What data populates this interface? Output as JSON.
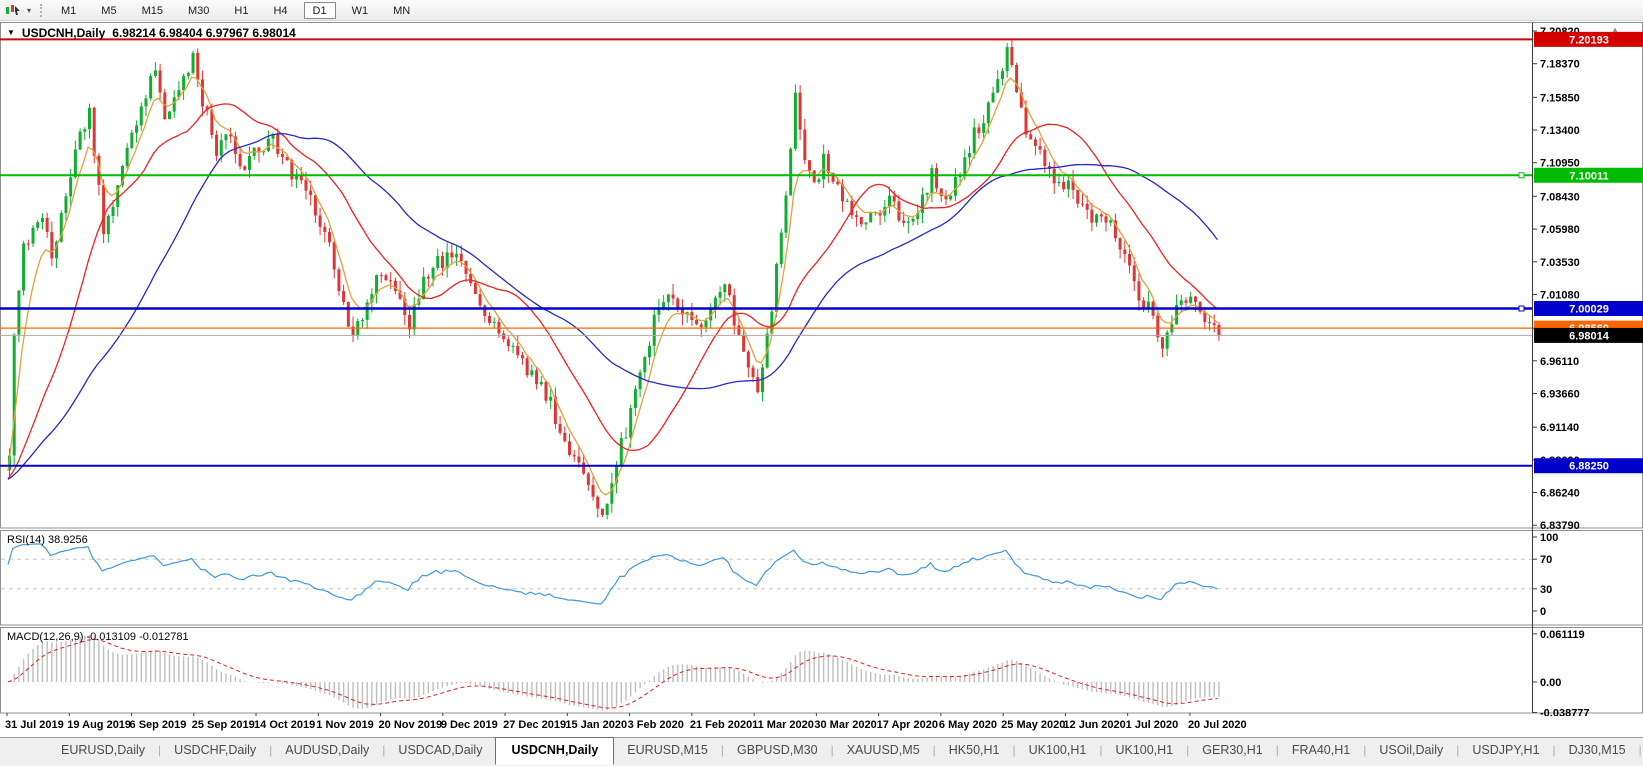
{
  "toolbar": {
    "timeframes": [
      "M1",
      "M5",
      "M15",
      "M30",
      "H1",
      "H4",
      "D1",
      "W1",
      "MN"
    ],
    "active": "D1"
  },
  "chart": {
    "title_caret": "▼",
    "symbol_title": "USDCNH,Daily",
    "ohlc": "6.98214 6.98404 6.97967 6.98014",
    "price_axis": {
      "tick_labels": [
        "7.20820",
        "7.18370",
        "7.15850",
        "7.13400",
        "7.10950",
        "7.08430",
        "7.05980",
        "7.03530",
        "7.01080",
        "6.98560",
        "6.96110",
        "6.93660",
        "6.91140",
        "6.88690",
        "6.86240",
        "6.83790"
      ],
      "tick_values": [
        7.2082,
        7.1837,
        7.1585,
        7.134,
        7.1095,
        7.0843,
        7.0598,
        7.0353,
        7.0108,
        6.9856,
        6.9611,
        6.9366,
        6.9114,
        6.8869,
        6.8624,
        6.8379
      ]
    },
    "current_price": {
      "value": 6.98014,
      "label": "6.98014",
      "line_color": "#a8a8a8",
      "badge_color": "#000000"
    }
  },
  "rsi": {
    "label": "RSI(14) 38.9256",
    "period": 14,
    "last_value": 38.9256,
    "tick_labels": [
      "100",
      "70",
      "30",
      "0"
    ],
    "tick_values": [
      100,
      70,
      30,
      0
    ],
    "dash_levels": [
      70,
      30
    ],
    "line_color": "#4197d6"
  },
  "macd": {
    "label": "MACD(12,26,9) -0.013109 -0.012781",
    "fast": 12,
    "slow": 26,
    "signal": 9,
    "last_macd": -0.013109,
    "last_signal": -0.012781,
    "tick_labels": [
      "0.061119",
      "0.00",
      "-0.038777"
    ],
    "tick_values": [
      0.061119,
      0,
      -0.038777
    ],
    "hist_color": "#bdbdbd",
    "signal_color": "#e02020"
  },
  "date_axis": {
    "labels": [
      "31 Jul 2019",
      "19 Aug 2019",
      "6 Sep 2019",
      "25 Sep 2019",
      "14 Oct 2019",
      "1 Nov 2019",
      "20 Nov 2019",
      "9 Dec 2019",
      "27 Dec 2019",
      "15 Jan 2020",
      "3 Feb 2020",
      "21 Feb 2020",
      "11 Mar 2020",
      "30 Mar 2020",
      "17 Apr 2020",
      "6 May 2020",
      "25 May 2020",
      "12 Jun 2020",
      "1 Jul 2020",
      "20 Jul 2020"
    ],
    "x0": 5,
    "dx": 62.26
  },
  "tabs": {
    "items": [
      "EURUSD,Daily",
      "USDCHF,Daily",
      "AUDUSD,Daily",
      "USDCAD,Daily",
      "USDCNH,Daily",
      "EURUSD,M15",
      "GBPUSD,M30",
      "XAUUSD,M5",
      "HK50,H1",
      "UK100,H1",
      "UK100,H1",
      "GER30,H1",
      "FRA40,H1",
      "USOil,Daily",
      "USDJPY,H1",
      "DJ30,M15",
      "CHINA300,H4"
    ],
    "active_index": 4,
    "scroll_left": "◄",
    "scroll_right": "►"
  },
  "chart_data": {
    "type": "candlestick",
    "symbol": "USDCNH",
    "timeframe": "Daily",
    "title": "USDCNH,Daily",
    "ylim": [
      6.8379,
      7.2082
    ],
    "bars": 258,
    "last_close": 6.98014,
    "anchors": [
      [
        0,
        6.885
      ],
      [
        1,
        6.975
      ],
      [
        3,
        7.045
      ],
      [
        5,
        7.055
      ],
      [
        7,
        7.07
      ],
      [
        9,
        7.035
      ],
      [
        12,
        7.09
      ],
      [
        15,
        7.13
      ],
      [
        17,
        7.145
      ],
      [
        20,
        7.06
      ],
      [
        23,
        7.09
      ],
      [
        26,
        7.13
      ],
      [
        28,
        7.155
      ],
      [
        31,
        7.175
      ],
      [
        33,
        7.14
      ],
      [
        36,
        7.16
      ],
      [
        39,
        7.19
      ],
      [
        41,
        7.155
      ],
      [
        44,
        7.12
      ],
      [
        47,
        7.13
      ],
      [
        50,
        7.105
      ],
      [
        53,
        7.12
      ],
      [
        56,
        7.125
      ],
      [
        59,
        7.11
      ],
      [
        62,
        7.09
      ],
      [
        65,
        7.075
      ],
      [
        68,
        7.05
      ],
      [
        71,
        7.0
      ],
      [
        73,
        6.975
      ],
      [
        76,
        7.005
      ],
      [
        79,
        7.03
      ],
      [
        82,
        7.015
      ],
      [
        85,
        6.99
      ],
      [
        88,
        7.02
      ],
      [
        91,
        7.035
      ],
      [
        94,
        7.04
      ],
      [
        97,
        7.025
      ],
      [
        100,
        7.0
      ],
      [
        103,
        6.985
      ],
      [
        106,
        6.975
      ],
      [
        109,
        6.96
      ],
      [
        112,
        6.945
      ],
      [
        115,
        6.93
      ],
      [
        118,
        6.9
      ],
      [
        121,
        6.88
      ],
      [
        124,
        6.862
      ],
      [
        126,
        6.845
      ],
      [
        128,
        6.87
      ],
      [
        131,
        6.91
      ],
      [
        134,
        6.955
      ],
      [
        137,
        6.99
      ],
      [
        140,
        7.015
      ],
      [
        143,
        6.995
      ],
      [
        146,
        6.985
      ],
      [
        149,
        7.0
      ],
      [
        152,
        7.02
      ],
      [
        154,
        6.99
      ],
      [
        157,
        6.955
      ],
      [
        159,
        6.935
      ],
      [
        161,
        6.975
      ],
      [
        163,
        7.03
      ],
      [
        165,
        7.09
      ],
      [
        167,
        7.16
      ],
      [
        169,
        7.115
      ],
      [
        171,
        7.09
      ],
      [
        173,
        7.115
      ],
      [
        175,
        7.1
      ],
      [
        178,
        7.08
      ],
      [
        181,
        7.06
      ],
      [
        184,
        7.07
      ],
      [
        187,
        7.085
      ],
      [
        190,
        7.06
      ],
      [
        193,
        7.07
      ],
      [
        196,
        7.1
      ],
      [
        199,
        7.085
      ],
      [
        202,
        7.1
      ],
      [
        205,
        7.13
      ],
      [
        208,
        7.15
      ],
      [
        210,
        7.17
      ],
      [
        212,
        7.19
      ],
      [
        214,
        7.165
      ],
      [
        216,
        7.135
      ],
      [
        219,
        7.12
      ],
      [
        222,
        7.1
      ],
      [
        225,
        7.09
      ],
      [
        228,
        7.075
      ],
      [
        231,
        7.065
      ],
      [
        234,
        7.06
      ],
      [
        237,
        7.04
      ],
      [
        240,
        7.01
      ],
      [
        243,
        6.995
      ],
      [
        245,
        6.975
      ],
      [
        247,
        6.99
      ],
      [
        249,
        7.005
      ],
      [
        251,
        7.005
      ],
      [
        253,
        6.995
      ],
      [
        255,
        6.985
      ],
      [
        257,
        6.98
      ]
    ],
    "hlines": [
      {
        "price": 7.20193,
        "label": "7.20193",
        "color": "#d40000",
        "width": 2,
        "marker": false
      },
      {
        "price": 7.10011,
        "label": "7.10011",
        "color": "#00bb00",
        "width": 2,
        "marker": true
      },
      {
        "price": 7.00029,
        "label": "7.00029",
        "color": "#0000cc",
        "width": 2.4,
        "marker": true
      },
      {
        "price": 6.9856,
        "label": "6.98560",
        "color": "#ff6600",
        "width": 1.3,
        "marker": false
      },
      {
        "price": 6.8825,
        "label": "6.88250",
        "color": "#0000cc",
        "width": 2,
        "marker": false
      }
    ],
    "moving_averages": [
      {
        "name": "fast",
        "period": 6,
        "color": "#e2a13c"
      },
      {
        "name": "medium",
        "period": 21,
        "color": "#ee2222"
      },
      {
        "name": "slow",
        "period": 45,
        "color": "#2628c8"
      }
    ],
    "colors": {
      "bull": "#0fae2e",
      "bear": "#e03535",
      "panel_border": "#8f8f8f",
      "axis_line": "#3c3c3c"
    }
  }
}
